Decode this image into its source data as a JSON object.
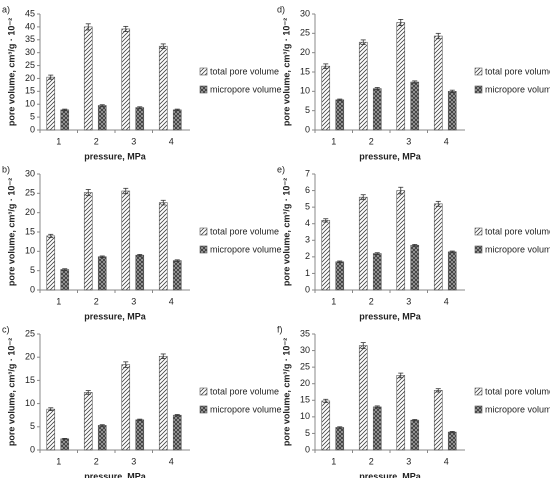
{
  "chart_data": [
    {
      "type": "bar",
      "panel_label": "a)",
      "ylabel": "pore volume, cm³/g · 10⁻²",
      "xlabel": "pressure, MPa",
      "categories": [
        "1",
        "2",
        "3",
        "4"
      ],
      "ylim": [
        0,
        45
      ],
      "yticks": [
        0,
        5,
        10,
        15,
        20,
        25,
        30,
        35,
        40,
        45
      ],
      "series": [
        {
          "name": "total pore volume",
          "color": "#444444",
          "hatch": "diagonal",
          "values": [
            20.5,
            40,
            39.2,
            32.5
          ],
          "errors": [
            0.8,
            1.2,
            1,
            0.9
          ]
        },
        {
          "name": "micropore volume",
          "color": "#444444",
          "hatch": "cross",
          "values": [
            7.8,
            9.5,
            8.7,
            7.8
          ],
          "errors": [
            0.3,
            0.3,
            0.3,
            0.3
          ]
        }
      ]
    },
    {
      "type": "bar",
      "panel_label": "d)",
      "ylabel": "pore volume, cm³/g · 10⁻²",
      "xlabel": "pressure, MPa",
      "categories": [
        "1",
        "2",
        "3",
        "4"
      ],
      "ylim": [
        0,
        30
      ],
      "yticks": [
        0,
        5,
        10,
        15,
        20,
        25,
        30
      ],
      "series": [
        {
          "name": "total pore volume",
          "color": "#444444",
          "hatch": "diagonal",
          "values": [
            16.5,
            22.7,
            27.8,
            24.3
          ],
          "errors": [
            0.6,
            0.6,
            0.8,
            0.7
          ]
        },
        {
          "name": "micropore volume",
          "color": "#444444",
          "hatch": "cross",
          "values": [
            7.8,
            10.7,
            12.4,
            10
          ],
          "errors": [
            0.2,
            0.3,
            0.3,
            0.3
          ]
        }
      ]
    },
    {
      "type": "bar",
      "panel_label": "b)",
      "ylabel": "pore volume, cm³/g · 10⁻²",
      "xlabel": "pressure, MPa",
      "categories": [
        "1",
        "2",
        "3",
        "4"
      ],
      "ylim": [
        0,
        30
      ],
      "yticks": [
        0,
        5,
        10,
        15,
        20,
        25,
        30
      ],
      "series": [
        {
          "name": "total pore volume",
          "color": "#444444",
          "hatch": "diagonal",
          "values": [
            14,
            25.2,
            25.6,
            22.6
          ],
          "errors": [
            0.4,
            0.8,
            0.7,
            0.6
          ]
        },
        {
          "name": "micropore volume",
          "color": "#444444",
          "hatch": "cross",
          "values": [
            5.3,
            8.6,
            9,
            7.6
          ],
          "errors": [
            0.2,
            0.2,
            0.2,
            0.2
          ]
        }
      ]
    },
    {
      "type": "bar",
      "panel_label": "e)",
      "ylabel": "pore volume, cm³/g · 10⁻²",
      "xlabel": "pressure, MPa",
      "categories": [
        "1",
        "2",
        "3",
        "4"
      ],
      "ylim": [
        0,
        7
      ],
      "yticks": [
        0,
        1,
        2,
        3,
        4,
        5,
        6,
        7
      ],
      "series": [
        {
          "name": "total pore volume",
          "color": "#444444",
          "hatch": "diagonal",
          "values": [
            4.2,
            5.6,
            6,
            5.2
          ],
          "errors": [
            0.1,
            0.15,
            0.2,
            0.15
          ]
        },
        {
          "name": "micropore volume",
          "color": "#444444",
          "hatch": "cross",
          "values": [
            1.7,
            2.2,
            2.7,
            2.3
          ],
          "errors": [
            0.05,
            0.05,
            0.05,
            0.05
          ]
        }
      ]
    },
    {
      "type": "bar",
      "panel_label": "c)",
      "ylabel": "pore volume, cm³/g · 10⁻²",
      "xlabel": "pressure, MPa",
      "categories": [
        "1",
        "2",
        "3",
        "4"
      ],
      "ylim": [
        0,
        25
      ],
      "yticks": [
        0,
        5,
        10,
        15,
        20,
        25
      ],
      "series": [
        {
          "name": "total pore volume",
          "color": "#444444",
          "hatch": "diagonal",
          "values": [
            8.8,
            12.4,
            18.4,
            20.2
          ],
          "errors": [
            0.3,
            0.4,
            0.6,
            0.5
          ]
        },
        {
          "name": "micropore volume",
          "color": "#444444",
          "hatch": "cross",
          "values": [
            2.4,
            5.3,
            6.5,
            7.5
          ],
          "errors": [
            0.1,
            0.15,
            0.15,
            0.15
          ]
        }
      ]
    },
    {
      "type": "bar",
      "panel_label": "f)",
      "ylabel": "pore volume, cm³/g · 10⁻²",
      "xlabel": "pressure, MPa",
      "categories": [
        "1",
        "2",
        "3",
        "4"
      ],
      "ylim": [
        0,
        35
      ],
      "yticks": [
        0,
        5,
        10,
        15,
        20,
        25,
        30,
        35
      ],
      "series": [
        {
          "name": "total pore volume",
          "color": "#444444",
          "hatch": "diagonal",
          "values": [
            14.8,
            31.5,
            22.5,
            18
          ],
          "errors": [
            0.5,
            0.9,
            0.7,
            0.5
          ]
        },
        {
          "name": "micropore volume",
          "color": "#444444",
          "hatch": "cross",
          "values": [
            6.8,
            13,
            9,
            5.4
          ],
          "errors": [
            0.2,
            0.3,
            0.2,
            0.2
          ]
        }
      ]
    }
  ]
}
